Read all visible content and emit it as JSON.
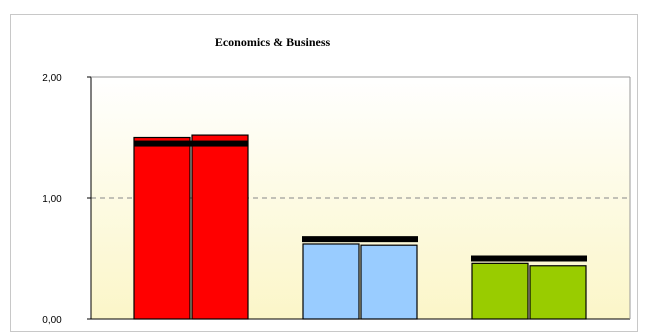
{
  "chart_data": {
    "type": "bar",
    "title": "Economics & Business",
    "xlabel": "",
    "ylabel": "",
    "ylim": [
      0,
      2
    ],
    "yticks": [
      "0,00",
      "1,00",
      "2,00"
    ],
    "yticks_values": [
      0,
      1,
      2
    ],
    "reference_line": 1.0,
    "groups": [
      {
        "color": "#ff0000",
        "bars": [
          1.5,
          1.52
        ],
        "marker": 1.45,
        "marker_span": "both"
      },
      {
        "color": "#99ccff",
        "bars": [
          0.62,
          0.61
        ],
        "marker": 0.66,
        "marker_span": "group"
      },
      {
        "color": "#99cc00",
        "bars": [
          0.46,
          0.44
        ],
        "marker": 0.5,
        "marker_span": "group"
      }
    ]
  }
}
